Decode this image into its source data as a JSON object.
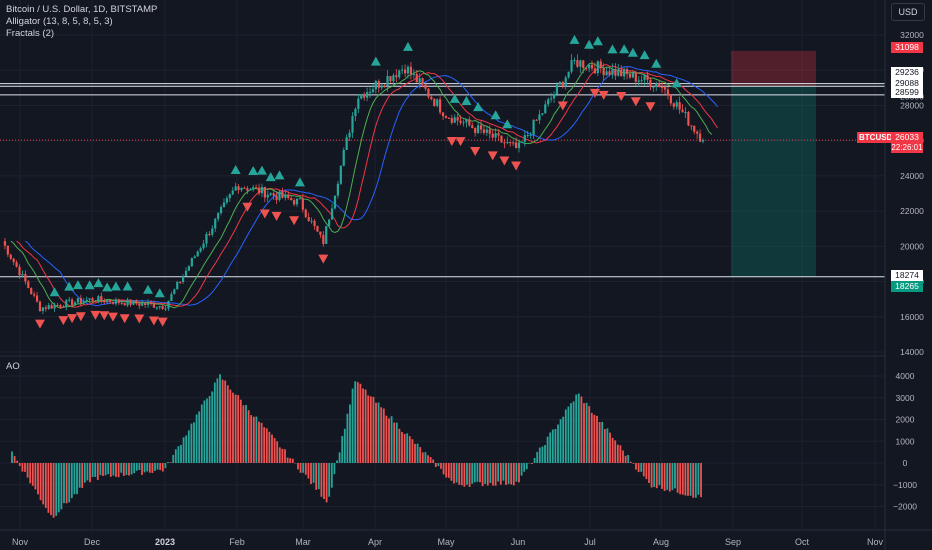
{
  "legend": {
    "title": "Bitcoin / U.S. Dollar, 1D, BITSTAMP",
    "indicator1": "Alligator (13, 8, 5, 8, 5, 3)",
    "indicator2": "Fractals (2)"
  },
  "ao_label": "AO",
  "currency": "USD",
  "symbol_tag": "BTCUSD",
  "countdown": "22:26:01",
  "price_axis": {
    "labels": [
      "32000",
      "30000",
      "28500",
      "28000",
      "26000",
      "24000",
      "22000",
      "20000",
      "18000",
      "16000",
      "14000"
    ]
  },
  "price_tags": {
    "stop": "31098",
    "level1": "29236",
    "level2": "29088",
    "level3": "28599",
    "last": "26033",
    "level4": "18274",
    "target": "18265"
  },
  "ao_axis": {
    "labels": [
      "4000",
      "3000",
      "2000",
      "1000",
      "0",
      "−1000",
      "−2000"
    ]
  },
  "time_axis": {
    "labels": [
      "Nov",
      "Dec",
      "2023",
      "Feb",
      "Mar",
      "Apr",
      "May",
      "Jun",
      "Jul",
      "Aug",
      "Sep",
      "Oct",
      "Nov"
    ]
  },
  "colors": {
    "up": "#26a69a",
    "down": "#ef5350",
    "jaw": "#2962ff",
    "teeth": "#f23645",
    "lips": "#4caf50"
  },
  "chart_data": {
    "type": "candlestick",
    "symbol": "Bitcoin / U.S. Dollar",
    "interval": "1D",
    "exchange": "BITSTAMP",
    "ylim": [
      14000,
      33000
    ],
    "last_price": 26033,
    "horizontal_levels": [
      29236,
      29088,
      28599,
      18274
    ],
    "position": {
      "entry": 29088,
      "stop": 31098,
      "target": 18265
    },
    "price_path": [
      {
        "month": "Nov",
        "close": 20500
      },
      {
        "month": "Nov",
        "close": 16500
      },
      {
        "month": "Dec",
        "close": 17000
      },
      {
        "month": "2023",
        "close": 16600
      },
      {
        "month": "Feb",
        "close": 23500
      },
      {
        "month": "Mar",
        "close": 22500
      },
      {
        "month": "Mar",
        "close": 20200
      },
      {
        "month": "Apr",
        "close": 28500
      },
      {
        "month": "Apr",
        "close": 30200
      },
      {
        "month": "May",
        "close": 27500
      },
      {
        "month": "Jun",
        "close": 25500
      },
      {
        "month": "Jul",
        "close": 30500
      },
      {
        "month": "Aug",
        "close": 29200
      },
      {
        "month": "Aug",
        "close": 26033
      }
    ],
    "ao_series": {
      "name": "AO",
      "ylim": [
        -2500,
        4500
      ],
      "points": [
        {
          "month": "Nov",
          "value": 500
        },
        {
          "month": "Nov",
          "value": -2500
        },
        {
          "month": "Dec",
          "value": -700
        },
        {
          "month": "2023",
          "value": -300
        },
        {
          "month": "Feb",
          "value": 4000
        },
        {
          "month": "Mar",
          "value": -1800
        },
        {
          "month": "Apr",
          "value": 3800
        },
        {
          "month": "May",
          "value": -1000
        },
        {
          "month": "Jun",
          "value": -900
        },
        {
          "month": "Jul",
          "value": 3200
        },
        {
          "month": "Aug",
          "value": -1000
        },
        {
          "month": "Aug",
          "value": -1600
        }
      ]
    }
  }
}
